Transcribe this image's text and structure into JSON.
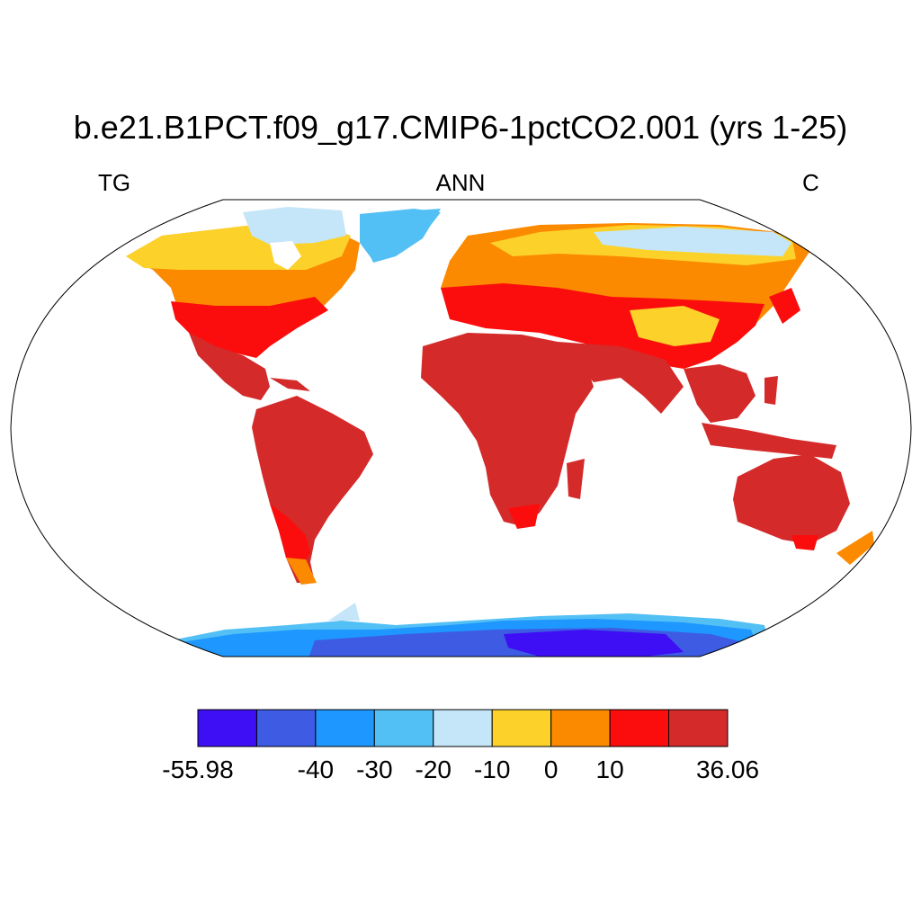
{
  "title": "b.e21.B1PCT.f09_g17.CMIP6-1pctCO2.001 (yrs 1-25)",
  "left_label": "TG",
  "center_label": "ANN",
  "right_label": "C",
  "colorbar": {
    "colors": [
      "#3e0ef5",
      "#3d5ce3",
      "#1e97ff",
      "#53c0f5",
      "#c4e6f8",
      "#fcd22a",
      "#fc8a00",
      "#fc0d0d",
      "#d42a2a"
    ],
    "tick_labels": [
      "-55.98",
      "",
      "-40",
      "-30",
      "-20",
      "-10",
      "0",
      "10",
      "",
      "36.06"
    ]
  },
  "colors": {
    "continent_outline": "#000000",
    "ocean": "#ffffff"
  }
}
